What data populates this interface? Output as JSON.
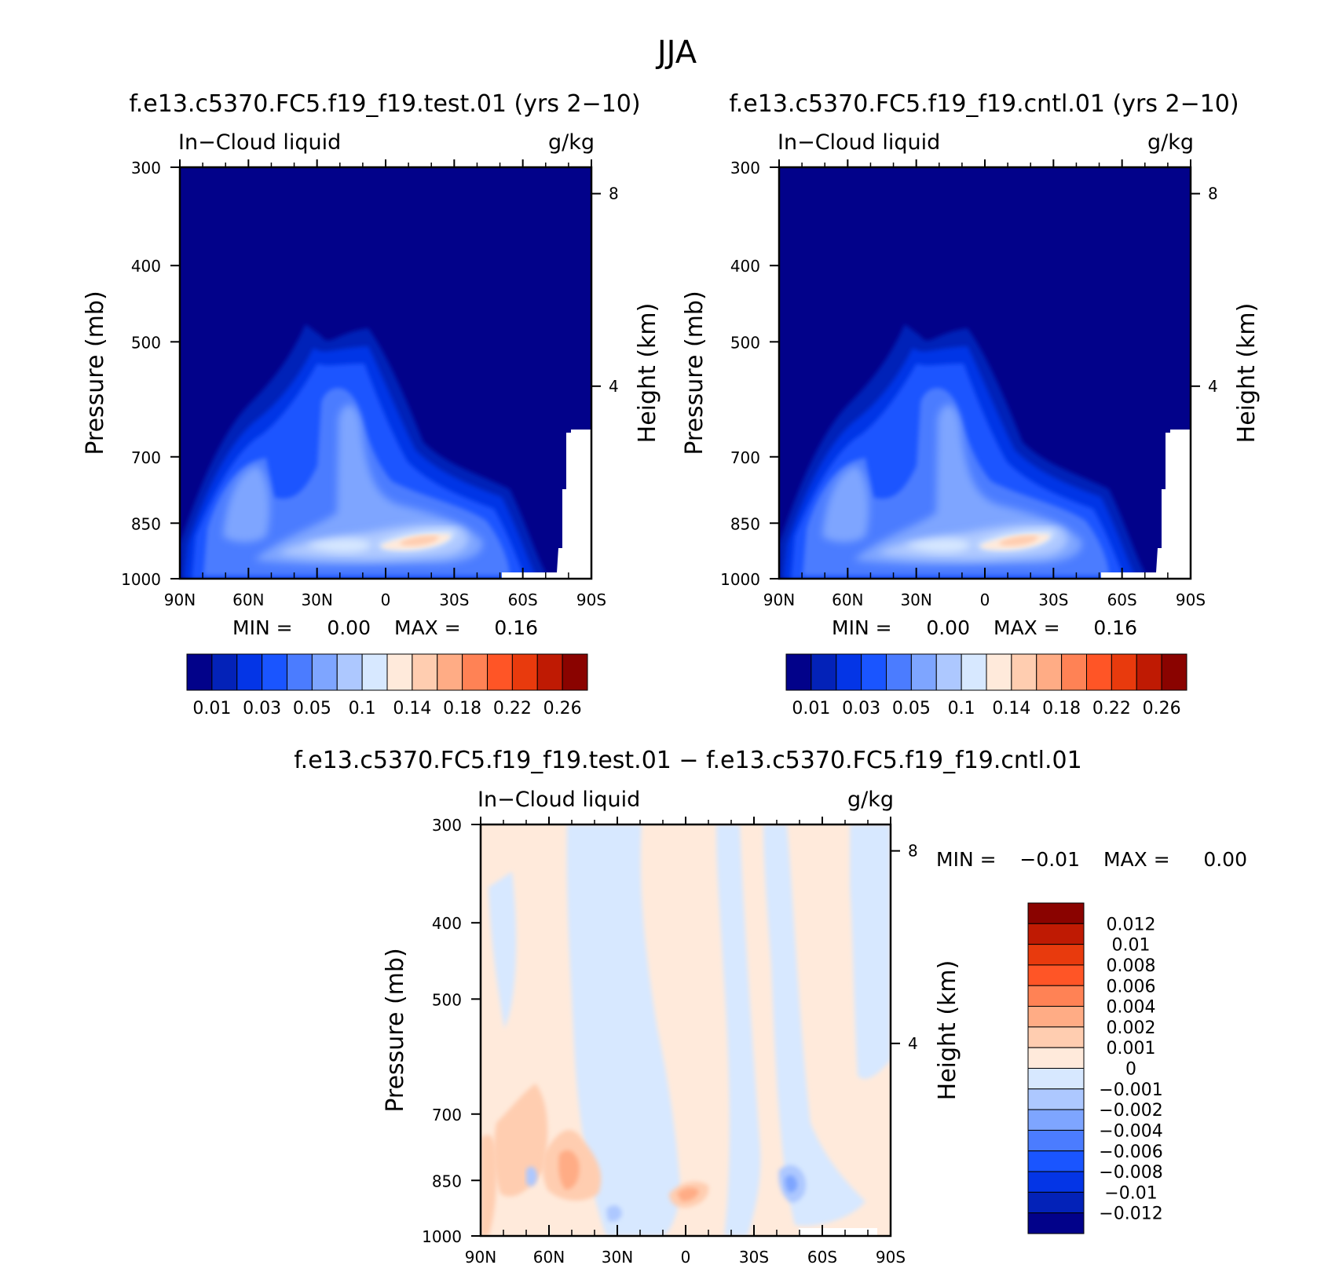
{
  "figure": {
    "title": "JJA"
  },
  "panels": [
    {
      "title": "f.e13.c5370.FC5.f19_f19.test.01 (yrs 2−10)",
      "left_label": "In−Cloud liquid",
      "right_label": "g/kg",
      "ylabel": "Pressure (mb)",
      "ylabel2": "Height (km)",
      "min_label": "MIN =",
      "min_value": "0.00",
      "max_label": "MAX =",
      "max_value": "0.16"
    },
    {
      "title": "f.e13.c5370.FC5.f19_f19.cntl.01 (yrs 2−10)",
      "left_label": "In−Cloud liquid",
      "right_label": "g/kg",
      "ylabel": "Pressure (mb)",
      "ylabel2": "Height (km)",
      "min_label": "MIN =",
      "min_value": "0.00",
      "max_label": "MAX =",
      "max_value": "0.16"
    },
    {
      "title": "f.e13.c5370.FC5.f19_f19.test.01 − f.e13.c5370.FC5.f19_f19.cntl.01",
      "left_label": "In−Cloud liquid",
      "right_label": "g/kg",
      "ylabel": "Pressure (mb)",
      "ylabel2": "Height (km)",
      "min_label": "MIN =",
      "min_value": "−0.01",
      "max_label": "MAX =",
      "max_value": "0.00"
    }
  ],
  "chart_data": [
    {
      "type": "heatmap",
      "x_ticks": [
        "90N",
        "60N",
        "30N",
        "0",
        "30S",
        "60S",
        "90S"
      ],
      "x_values": [
        90,
        60,
        30,
        0,
        -30,
        -60,
        -90
      ],
      "y_ticks": [
        300,
        400,
        500,
        700,
        850,
        1000
      ],
      "y_scale": "log",
      "y_reversed": true,
      "height_ticks": [
        8,
        4
      ],
      "colorbar_ticks": [
        "0.01",
        "0.03",
        "0.05",
        "0.1",
        "0.14",
        "0.18",
        "0.22",
        "0.26"
      ],
      "colorbar_orientation": "horizontal",
      "colors": [
        "#02028a",
        "#0322b8",
        "#0435e6",
        "#1a55ff",
        "#4b7cff",
        "#7ea5ff",
        "#adc8ff",
        "#d7e8ff",
        "#ffeadb",
        "#ffcdb0",
        "#ffac85",
        "#ff8255",
        "#ff5526",
        "#e83a0d",
        "#bf1a03",
        "#8a0300"
      ]
    },
    {
      "type": "heatmap",
      "x_ticks": [
        "90N",
        "60N",
        "30N",
        "0",
        "30S",
        "60S",
        "90S"
      ],
      "x_values": [
        90,
        60,
        30,
        0,
        -30,
        -60,
        -90
      ],
      "y_ticks": [
        300,
        400,
        500,
        700,
        850,
        1000
      ],
      "y_scale": "log",
      "y_reversed": true,
      "height_ticks": [
        8,
        4
      ],
      "colorbar_ticks": [
        "0.01",
        "0.03",
        "0.05",
        "0.1",
        "0.14",
        "0.18",
        "0.22",
        "0.26"
      ],
      "colorbar_orientation": "horizontal",
      "colors": [
        "#02028a",
        "#0322b8",
        "#0435e6",
        "#1a55ff",
        "#4b7cff",
        "#7ea5ff",
        "#adc8ff",
        "#d7e8ff",
        "#ffeadb",
        "#ffcdb0",
        "#ffac85",
        "#ff8255",
        "#ff5526",
        "#e83a0d",
        "#bf1a03",
        "#8a0300"
      ]
    },
    {
      "type": "heatmap",
      "x_ticks": [
        "90N",
        "60N",
        "30N",
        "0",
        "30S",
        "60S",
        "90S"
      ],
      "x_values": [
        90,
        60,
        30,
        0,
        -30,
        -60,
        -90
      ],
      "y_ticks": [
        300,
        400,
        500,
        700,
        850,
        1000
      ],
      "y_scale": "log",
      "y_reversed": true,
      "height_ticks": [
        8,
        4
      ],
      "colorbar_ticks": [
        "0.012",
        "0.01",
        "0.008",
        "0.006",
        "0.004",
        "0.002",
        "0.001",
        "0",
        "−0.001",
        "−0.002",
        "−0.004",
        "−0.006",
        "−0.008",
        "−0.01",
        "−0.012"
      ],
      "colorbar_orientation": "vertical",
      "colors": [
        "#8a0300",
        "#bf1a03",
        "#e83a0d",
        "#ff5526",
        "#ff8255",
        "#ffac85",
        "#ffcdb0",
        "#ffeadb",
        "#d7e8ff",
        "#adc8ff",
        "#7ea5ff",
        "#4b7cff",
        "#1a55ff",
        "#0435e6",
        "#0322b8",
        "#02028a"
      ]
    }
  ]
}
